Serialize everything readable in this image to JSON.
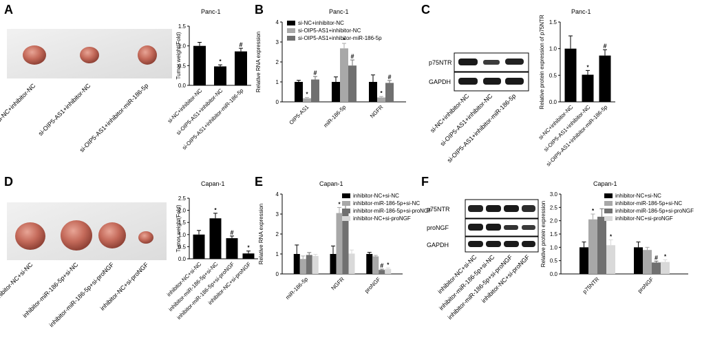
{
  "figure": {
    "palette": {
      "black": "#000000",
      "lightgray": "#a8a8a8",
      "midgray": "#707070",
      "verylight": "#d9d9d9",
      "tissue": "#c46a5a",
      "band": "#1a1a1a"
    },
    "panels": {
      "A": {
        "letter": "A",
        "photo_labels": [
          "si-NC+inhibitor-NC",
          "si-OIP5-AS1+inhibitor-NC",
          "si-OIP5-AS1+inhibitor-miR-186-5p"
        ]
      },
      "C": {
        "letter": "C",
        "blot_labels": [
          "p75NTR",
          "GAPDH"
        ],
        "lane_labels": [
          "si-NC+inhibitor-NC",
          "si-OIP5-AS1+inhibitor-NC",
          "si-OIP5-AS1+inhibitor-miR-186-5p"
        ]
      },
      "D": {
        "letter": "D",
        "photo_labels": [
          "inhibitor-NC+si-NC",
          "inhibitor-miR-186-5p+si-NC",
          "inhibitor-miR-186-5p+si-proNGF",
          "inhibitor-NC+si-proNGF"
        ]
      },
      "F": {
        "letter": "F",
        "blot_labels": [
          "p75NTR",
          "proNGF",
          "GAPDH"
        ],
        "lane_labels": [
          "inhibitor-NC+si-NC",
          "inhibitor-miR-186-5p+si-NC",
          "inhibitor-miR-186-5p+si-proNGF",
          "inhibitor-NC+si-proNGF"
        ]
      }
    }
  },
  "chart_data": [
    {
      "id": "A-chart",
      "letter": "",
      "type": "bar",
      "title": "Panc-1",
      "ylabel": "Tumor weight(Fold)",
      "ylim": [
        0,
        1.5
      ],
      "yticks": [
        0.0,
        0.5,
        1.0,
        1.5
      ],
      "categories": [
        "si-NC+inhibitor-NC",
        "si-OIP5-AS1+inhibitor-NC",
        "si-OIP5-AS1+inhibitor-miR-186-5p"
      ],
      "series": [
        {
          "color": "#000000",
          "values": [
            1.0,
            0.48,
            0.86
          ],
          "errors": [
            0.09,
            0.04,
            0.08
          ],
          "marks": [
            "",
            "*",
            "#"
          ]
        }
      ]
    },
    {
      "id": "B-chart",
      "letter": "B",
      "type": "bar",
      "title": "Panc-1",
      "ylabel": "Relative RNA expression",
      "ylim": [
        0,
        4
      ],
      "yticks": [
        0,
        1,
        2,
        3,
        4
      ],
      "categories": [
        "OIP5-AS1",
        "miR-186-5p",
        "NGFR"
      ],
      "series": [
        {
          "name": "si-NC+inhibitor-NC",
          "color": "#000000",
          "values": [
            1.0,
            1.0,
            1.0
          ],
          "errors": [
            0.08,
            0.25,
            0.35
          ],
          "marks": [
            "",
            "",
            ""
          ]
        },
        {
          "name": "si-OIP5-AS1+inhibitor-NC",
          "color": "#a8a8a8",
          "values": [
            0.18,
            2.68,
            0.22
          ],
          "errors": [
            0.04,
            0.25,
            0.05
          ],
          "marks": [
            "*",
            "*",
            "*"
          ]
        },
        {
          "name": "si-OIP5-AS1+inhibitor-miR-186-5p",
          "color": "#707070",
          "values": [
            1.12,
            1.82,
            0.95
          ],
          "errors": [
            0.15,
            0.28,
            0.12
          ],
          "marks": [
            "#",
            "#",
            "#"
          ]
        }
      ]
    },
    {
      "id": "C-chart",
      "letter": "",
      "type": "bar",
      "title": "Panc-1",
      "ylabel": "Relative protein expression of p75NTR",
      "ylim": [
        0,
        1.5
      ],
      "yticks": [
        0.0,
        0.5,
        1.0,
        1.5
      ],
      "categories": [
        "si-NC+inhibitor-NC",
        "si-OIP5-AS1+inhibitor-NC",
        "si-OIP5-AS1+inhibitor-miR-186-5p"
      ],
      "series": [
        {
          "color": "#000000",
          "values": [
            1.0,
            0.51,
            0.87
          ],
          "errors": [
            0.24,
            0.08,
            0.11
          ],
          "marks": [
            "",
            "*",
            "#"
          ]
        }
      ]
    },
    {
      "id": "D-chart",
      "letter": "",
      "type": "bar",
      "title": "Capan-1",
      "ylabel": "Tumor weight(Fold)",
      "ylim": [
        0,
        2.5
      ],
      "yticks": [
        0.0,
        0.5,
        1.0,
        1.5,
        2.0,
        2.5
      ],
      "categories": [
        "inhibitor-NC+si-NC",
        "inhibitor-miR-186-5p+si-NC",
        "inhibitor-miR-186-5p+si-proNGF",
        "inhibitor-NC+si-proNGF"
      ],
      "series": [
        {
          "color": "#000000",
          "values": [
            1.0,
            1.67,
            0.85,
            0.22
          ],
          "errors": [
            0.17,
            0.21,
            0.09,
            0.1
          ],
          "marks": [
            "",
            "*",
            "#",
            "*"
          ]
        }
      ]
    },
    {
      "id": "E-chart",
      "letter": "E",
      "type": "bar",
      "title": "Capan-1",
      "ylabel": "Relative RNA expression",
      "ylim": [
        0,
        4
      ],
      "yticks": [
        0,
        1,
        2,
        3,
        4
      ],
      "categories": [
        "miR-186-5p",
        "NGFR",
        "proNGF"
      ],
      "series": [
        {
          "name": "inhibitor-NC+si-NC",
          "color": "#000000",
          "values": [
            1.0,
            1.0,
            1.0
          ],
          "errors": [
            0.45,
            0.4,
            0.08
          ],
          "marks": [
            "",
            "",
            ""
          ]
        },
        {
          "name": "inhibitor-miR-186-5p+si-NC",
          "color": "#a8a8a8",
          "values": [
            0.75,
            3.05,
            0.88
          ],
          "errors": [
            0.15,
            0.28,
            0.05
          ],
          "marks": [
            "",
            "*",
            ""
          ]
        },
        {
          "name": "inhibitor-miR-186-5p+si-proNGF",
          "color": "#707070",
          "values": [
            0.95,
            3.1,
            0.2
          ],
          "errors": [
            0.12,
            0.35,
            0.04
          ],
          "marks": [
            "",
            "",
            "#"
          ]
        },
        {
          "name": "inhibitor-NC+si-proNGF",
          "color": "#d9d9d9",
          "values": [
            0.9,
            1.02,
            0.25
          ],
          "errors": [
            0.08,
            0.18,
            0.05
          ],
          "marks": [
            "",
            "",
            "*"
          ]
        }
      ]
    },
    {
      "id": "F-chart",
      "letter": "",
      "type": "bar",
      "title": "Capan-1",
      "ylabel": "Relative protein expression",
      "ylim": [
        0,
        3.0
      ],
      "yticks": [
        0.0,
        0.5,
        1.0,
        1.5,
        2.0,
        2.5,
        3.0
      ],
      "categories": [
        "p75NTR",
        "proNGF"
      ],
      "series": [
        {
          "name": "inhibitor-NC+si-NC",
          "color": "#000000",
          "values": [
            1.0,
            1.0
          ],
          "errors": [
            0.2,
            0.2
          ],
          "marks": [
            "",
            ""
          ]
        },
        {
          "name": "inhibitor-miR-186-5p+si-NC",
          "color": "#a8a8a8",
          "values": [
            2.05,
            0.9
          ],
          "errors": [
            0.2,
            0.1
          ],
          "marks": [
            "*",
            ""
          ]
        },
        {
          "name": "inhibitor-miR-186-5p+si-proNGF",
          "color": "#707070",
          "values": [
            2.15,
            0.43
          ],
          "errors": [
            0.3,
            0.05
          ],
          "marks": [
            "",
            "#"
          ]
        },
        {
          "name": "inhibitor-NC+si-proNGF",
          "color": "#d9d9d9",
          "values": [
            1.08,
            0.45
          ],
          "errors": [
            0.2,
            0.08
          ],
          "marks": [
            "*",
            "*"
          ]
        }
      ]
    }
  ]
}
